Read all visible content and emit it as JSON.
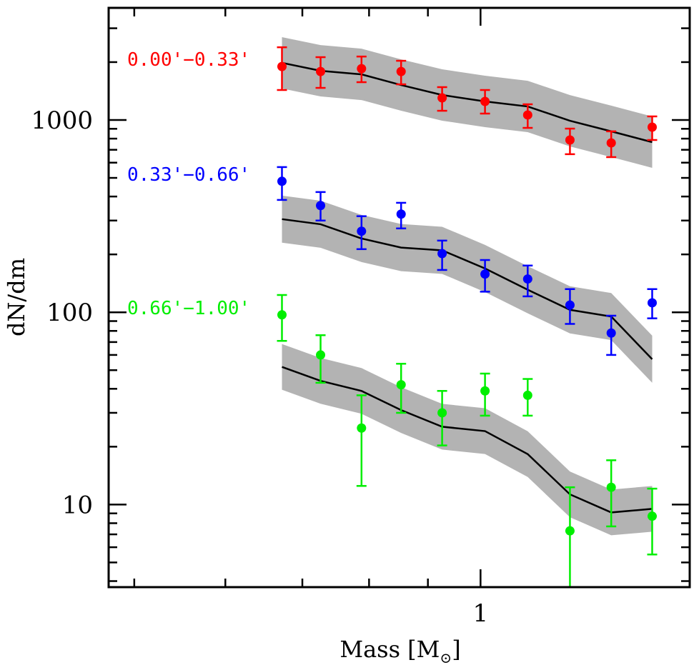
{
  "chart_data": {
    "type": "scatter",
    "title": "",
    "xlabel": "Mass [M⊙]",
    "xlabel_main": "Mass [M",
    "xlabel_sub": "⊙",
    "xlabel_close": "]",
    "ylabel": "dN/dm",
    "xscale": "log",
    "yscale": "log",
    "xlim": [
      0.475,
      1.52
    ],
    "ylim": [
      3.72,
      3830
    ],
    "x_major_ticks": [
      {
        "value": 1,
        "label": "1"
      }
    ],
    "x_minor_ticks": [
      0.5,
      0.6,
      0.7,
      0.8,
      0.9
    ],
    "y_major_ticks": [
      {
        "value": 10,
        "label": "10"
      },
      {
        "value": 100,
        "label": "100"
      },
      {
        "value": 1000,
        "label": "1000"
      }
    ],
    "y_minor_ticks": [
      4,
      5,
      6,
      7,
      8,
      9,
      20,
      30,
      40,
      50,
      60,
      70,
      80,
      90,
      200,
      300,
      400,
      500,
      600,
      700,
      800,
      900,
      2000,
      3000
    ],
    "grid": false,
    "x": [
      0.672,
      0.726,
      0.788,
      0.853,
      0.926,
      1.009,
      1.099,
      1.196,
      1.299,
      1.41
    ],
    "series": [
      {
        "name": "0.00'−0.33'",
        "color": "#ff0000",
        "values": [
          1897,
          1787,
          1849,
          1787,
          1303,
          1249,
          1062,
          787,
          760,
          918
        ],
        "err_hi": [
          2389,
          2122,
          2138,
          2032,
          1482,
          1432,
          1207,
          902,
          873,
          1044
        ],
        "err_lo": [
          1432,
          1469,
          1573,
          1533,
          1117,
          1080,
          910,
          664,
          641,
          787
        ],
        "model": [
          1983,
          1803,
          1727,
          1520,
          1349,
          1249,
          1176,
          991,
          873,
          767
        ],
        "model_band_factor": 1.36
      },
      {
        "name": "0.33'−0.66'",
        "color": "#0000ff",
        "values": [
          480,
          359,
          264,
          324,
          202,
          158,
          149,
          109,
          78,
          112
        ],
        "err_hi": [
          569,
          422,
          316,
          371,
          236,
          187,
          175,
          132,
          96,
          132
        ],
        "err_lo": [
          384,
          300,
          213,
          273,
          166,
          128,
          121,
          87,
          60,
          93
        ],
        "model": [
          305,
          287,
          242,
          217,
          210,
          169,
          131,
          103,
          95,
          57
        ],
        "model_band_factor": 1.326
      },
      {
        "name": "0.66'−1.00'",
        "color": "#00ee00",
        "values": [
          97,
          60,
          25,
          42,
          30,
          39,
          37,
          7.3,
          12.3,
          8.7
        ],
        "err_hi": [
          123,
          76,
          37,
          54,
          39,
          48,
          45,
          12.3,
          17,
          12.1
        ],
        "err_lo": [
          71,
          43,
          12.5,
          30,
          20.3,
          29,
          29,
          3,
          7.7,
          5.5
        ],
        "model": [
          52,
          44,
          39,
          31,
          25.4,
          24.1,
          18.3,
          11.3,
          9.1,
          9.5
        ],
        "model_band_factor": 1.315
      }
    ],
    "model_line_color": "#000000",
    "model_band_color": "#b3b3b3"
  }
}
